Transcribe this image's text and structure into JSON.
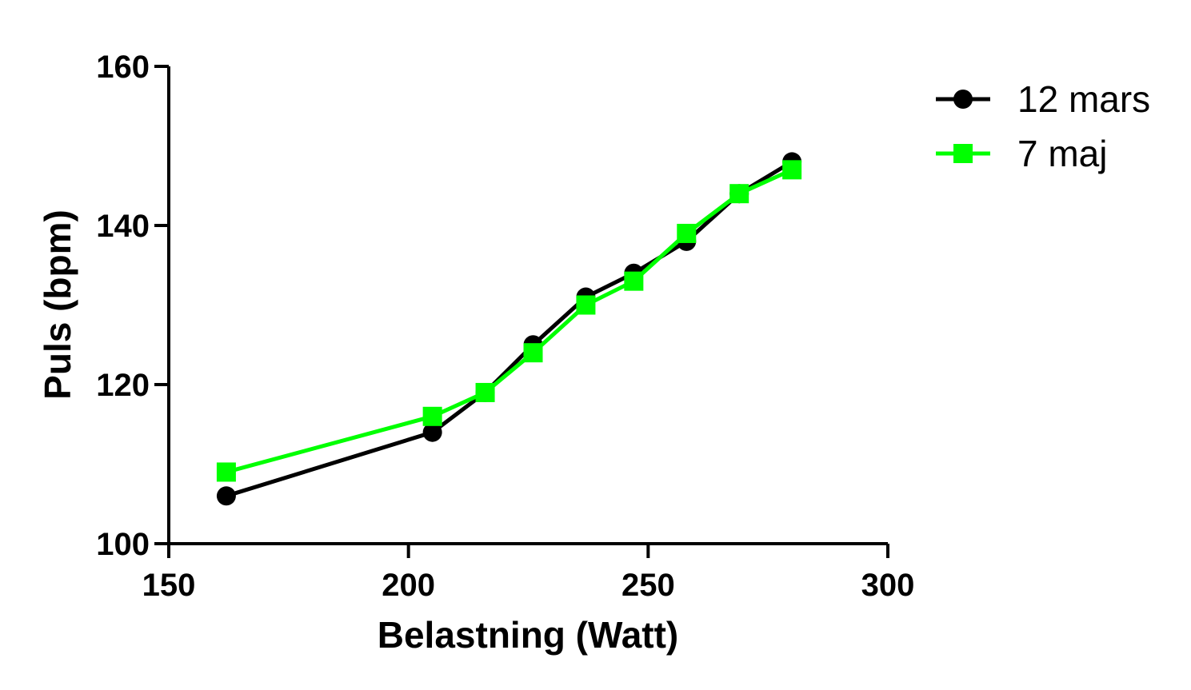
{
  "chart_data": {
    "type": "line",
    "title": "",
    "xlabel": "Belastning (Watt)",
    "ylabel": "Puls (bpm)",
    "xlim": [
      150,
      300
    ],
    "ylim": [
      100,
      160
    ],
    "x_ticks": [
      150,
      200,
      250,
      300
    ],
    "y_ticks": [
      100,
      120,
      140,
      160
    ],
    "grid": false,
    "legend_position": "top-right",
    "series": [
      {
        "name": "12 mars",
        "marker": "circle",
        "color": "#000000",
        "x": [
          162,
          205,
          216,
          226,
          237,
          247,
          258,
          269,
          280
        ],
        "y": [
          106,
          114,
          119,
          125,
          131,
          134,
          138,
          144,
          148
        ]
      },
      {
        "name": "7 maj",
        "marker": "square",
        "color": "#00ff00",
        "x": [
          162,
          205,
          216,
          226,
          237,
          247,
          258,
          269,
          280
        ],
        "y": [
          109,
          116,
          119,
          124,
          130,
          133,
          139,
          144,
          147
        ]
      }
    ]
  }
}
